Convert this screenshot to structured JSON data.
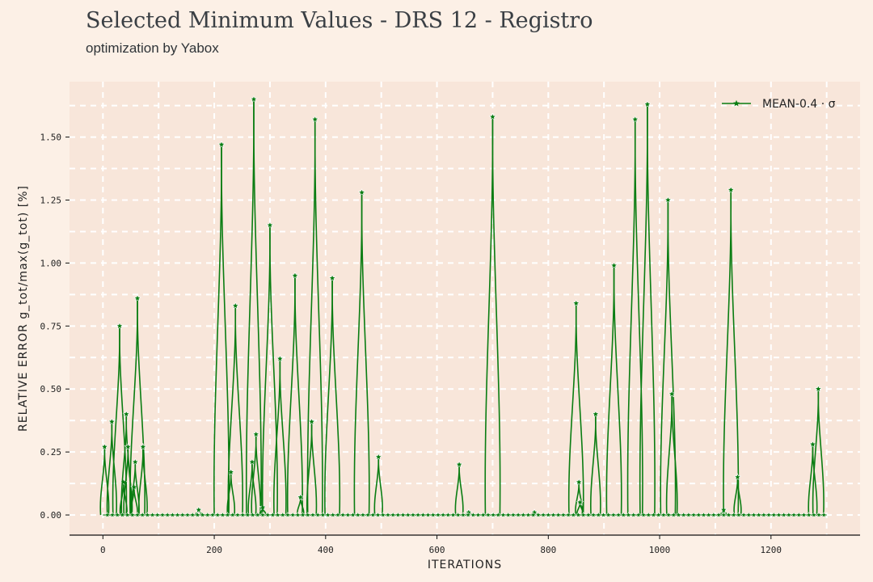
{
  "header": {
    "title": "Selected Minimum Values - DRS 12 - Registro",
    "subtitle": "optimization by Yabox"
  },
  "colors": {
    "background": "#fcf0e6",
    "plot_background": "#f8e6da",
    "grid": "#ffffff",
    "series": "#0a7d12"
  },
  "chart_data": {
    "type": "line",
    "xlabel": "ITERATIONS",
    "ylabel": "RELATIVE ERROR g_tot/max(g_tot) [%]",
    "xlim": [
      -60,
      1360
    ],
    "ylim": [
      -0.08,
      1.72
    ],
    "xticks": [
      0,
      200,
      400,
      600,
      800,
      1000,
      1200
    ],
    "yticks": [
      0.0,
      0.25,
      0.5,
      0.75,
      1.0,
      1.25,
      1.5
    ],
    "ytick_labels": [
      "0.00",
      "0.25",
      "0.50",
      "0.75",
      "1.00",
      "1.25",
      "1.50"
    ],
    "grid": true,
    "legend_position": "top-right",
    "series": [
      {
        "name": "MEAN-0.4 · σ",
        "marker": "star",
        "spikes": [
          [
            3,
            0.27
          ],
          [
            16,
            0.37
          ],
          [
            30,
            0.75
          ],
          [
            37,
            0.13
          ],
          [
            42,
            0.4
          ],
          [
            45,
            0.27
          ],
          [
            56,
            0.11
          ],
          [
            58,
            0.21
          ],
          [
            62,
            0.86
          ],
          [
            72,
            0.27
          ],
          [
            172,
            0.02
          ],
          [
            213,
            1.47
          ],
          [
            230,
            0.17
          ],
          [
            238,
            0.83
          ],
          [
            268,
            0.21
          ],
          [
            271,
            1.65
          ],
          [
            275,
            0.32
          ],
          [
            287,
            0.03
          ],
          [
            300,
            1.15
          ],
          [
            318,
            0.62
          ],
          [
            345,
            0.95
          ],
          [
            355,
            0.07
          ],
          [
            375,
            0.37
          ],
          [
            381,
            1.57
          ],
          [
            412,
            0.94
          ],
          [
            465,
            1.28
          ],
          [
            495,
            0.23
          ],
          [
            640,
            0.2
          ],
          [
            657,
            0.01
          ],
          [
            700,
            1.58
          ],
          [
            775,
            0.01
          ],
          [
            850,
            0.84
          ],
          [
            855,
            0.13
          ],
          [
            857,
            0.05
          ],
          [
            885,
            0.4
          ],
          [
            918,
            0.99
          ],
          [
            956,
            1.57
          ],
          [
            978,
            1.63
          ],
          [
            1015,
            1.25
          ],
          [
            1022,
            0.48
          ],
          [
            1115,
            0.02
          ],
          [
            1128,
            1.29
          ],
          [
            1140,
            0.15
          ],
          [
            1275,
            0.28
          ],
          [
            1285,
            0.5
          ]
        ]
      }
    ]
  }
}
